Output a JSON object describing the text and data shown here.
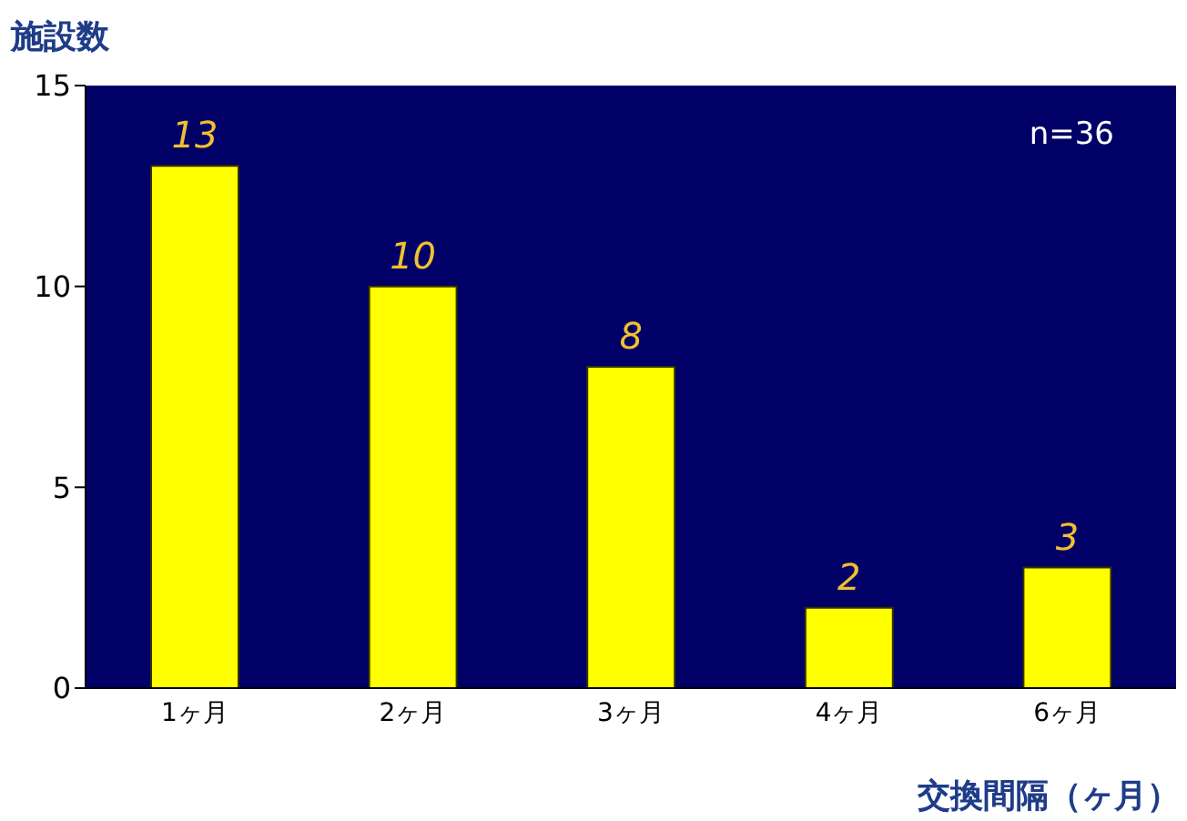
{
  "chart_data": {
    "type": "bar",
    "ylabel": "施設数",
    "xlabel": "交換間隔（ヶ月）",
    "categories": [
      "1ヶ月",
      "2ヶ月",
      "3ヶ月",
      "4ヶ月",
      "6ヶ月"
    ],
    "values": [
      13,
      10,
      8,
      2,
      3
    ],
    "color": "#ffff00",
    "ylim": [
      0,
      15
    ],
    "yticks": [
      0,
      5,
      10,
      15
    ],
    "grid": false,
    "data_labels": true,
    "annotations": [
      "n=36"
    ]
  }
}
